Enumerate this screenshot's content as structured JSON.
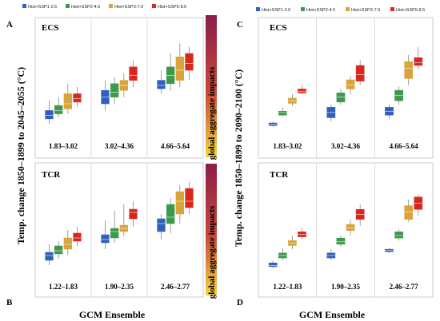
{
  "legend": {
    "items": [
      {
        "label": "Hist+SSP1-2.6",
        "color": "#2f5fbf"
      },
      {
        "label": "Hist+SSP2-4.5",
        "color": "#3c9a4a"
      },
      {
        "label": "Hist+SSP3-7.0",
        "color": "#d9a43a"
      },
      {
        "label": "Hist+SSP5-8.5",
        "color": "#d8281e"
      }
    ]
  },
  "left": {
    "ylabel": "Temp. change 1850–1899 to 2045–2055 (°C)",
    "xlabel": "GCM Ensemble",
    "impact_label": "global aggregate impacts"
  },
  "right": {
    "ylabel": "Temp. change 1850–1899 to 2090–2100 (°C)",
    "xlabel": "GCM Ensemble"
  },
  "chart_data": [
    {
      "type": "box",
      "panel_letter": "A",
      "title": "ECS",
      "groups": [
        "1.83–3.02",
        "3.02–4.36",
        "4.66–5.64"
      ],
      "series": [
        {
          "name": "Hist+SSP1-2.6",
          "boxes": [
            [
              1.2,
              1.35,
              1.45,
              1.6,
              1.9
            ],
            [
              1.6,
              1.8,
              2.0,
              2.2,
              2.5
            ],
            [
              2.1,
              2.25,
              2.35,
              2.5,
              2.8
            ]
          ]
        },
        {
          "name": "Hist+SSP2-4.5",
          "boxes": [
            [
              1.4,
              1.5,
              1.6,
              1.75,
              2.0
            ],
            [
              1.8,
              2.0,
              2.15,
              2.4,
              2.6
            ],
            [
              2.2,
              2.4,
              2.65,
              2.9,
              3.3
            ]
          ]
        },
        {
          "name": "Hist+SSP3-7.0",
          "boxes": [
            [
              1.5,
              1.65,
              1.8,
              2.1,
              2.4
            ],
            [
              2.0,
              2.2,
              2.35,
              2.5,
              2.7
            ],
            [
              2.3,
              2.5,
              2.8,
              3.2,
              3.6
            ]
          ]
        },
        {
          "name": "Hist+SSP5-8.5",
          "boxes": [
            [
              1.7,
              1.85,
              1.95,
              2.1,
              2.3
            ],
            [
              2.3,
              2.5,
              2.65,
              2.9,
              3.1
            ],
            [
              2.5,
              2.8,
              3.0,
              3.3,
              3.5
            ]
          ]
        }
      ],
      "ylim": [
        0.8,
        3.8
      ]
    },
    {
      "type": "box",
      "panel_letter": "B",
      "title": "TCR",
      "groups": [
        "1.22–1.83",
        "1.90–2.35",
        "2.46–2.77"
      ],
      "series": [
        {
          "name": "Hist+SSP1-2.6",
          "boxes": [
            [
              1.2,
              1.35,
              1.5,
              1.6,
              1.85
            ],
            [
              1.7,
              1.9,
              2.0,
              2.15,
              2.6
            ],
            [
              2.0,
              2.25,
              2.5,
              2.65,
              2.8
            ]
          ]
        },
        {
          "name": "Hist+SSP2-4.5",
          "boxes": [
            [
              1.4,
              1.55,
              1.65,
              1.8,
              1.95
            ],
            [
              1.9,
              2.05,
              2.25,
              2.35,
              2.9
            ],
            [
              2.2,
              2.5,
              2.7,
              3.1,
              3.3
            ]
          ]
        },
        {
          "name": "Hist+SSP3-7.0",
          "boxes": [
            [
              1.5,
              1.7,
              1.85,
              2.05,
              2.3
            ],
            [
              2.1,
              2.25,
              2.35,
              2.45,
              3.1
            ],
            [
              2.5,
              2.8,
              3.2,
              3.5,
              3.7
            ]
          ]
        },
        {
          "name": "Hist+SSP5-8.5",
          "boxes": [
            [
              1.8,
              1.95,
              2.05,
              2.2,
              2.4
            ],
            [
              2.4,
              2.65,
              2.85,
              2.95,
              3.2
            ],
            [
              2.8,
              3.0,
              3.2,
              3.6,
              3.8
            ]
          ]
        }
      ],
      "ylim": [
        0.8,
        3.8
      ]
    },
    {
      "type": "box",
      "panel_letter": "C",
      "title": "ECS",
      "groups": [
        "1.83–3.02",
        "3.02–4.36",
        "4.66–5.64"
      ],
      "series": [
        {
          "name": "Hist+SSP1-2.6",
          "boxes": [
            [
              1.3,
              1.4,
              1.5,
              1.6,
              1.7
            ],
            [
              1.7,
              2.0,
              2.4,
              2.8,
              3.0
            ],
            [
              1.9,
              2.2,
              2.5,
              2.8,
              3.0
            ]
          ]
        },
        {
          "name": "Hist+SSP2-4.5",
          "boxes": [
            [
              2.1,
              2.2,
              2.4,
              2.5,
              2.8
            ],
            [
              3.0,
              3.2,
              3.6,
              3.9,
              4.2
            ],
            [
              3.0,
              3.3,
              3.7,
              4.1,
              4.4
            ]
          ]
        },
        {
          "name": "Hist+SSP3-7.0",
          "boxes": [
            [
              2.9,
              3.1,
              3.3,
              3.5,
              3.8
            ],
            [
              3.8,
              4.2,
              4.5,
              4.9,
              5.2
            ],
            [
              4.5,
              5.0,
              5.8,
              6.3,
              6.8
            ]
          ]
        },
        {
          "name": "Hist+SSP5-8.5",
          "boxes": [
            [
              3.8,
              3.9,
              4.0,
              4.2,
              4.5
            ],
            [
              4.5,
              4.8,
              5.3,
              6.0,
              6.4
            ],
            [
              5.7,
              6.0,
              6.2,
              6.6,
              7.4
            ]
          ]
        }
      ],
      "ylim": [
        0.5,
        8.2
      ]
    },
    {
      "type": "box",
      "panel_letter": "D",
      "title": "TCR",
      "groups": [
        "1.22–1.83",
        "1.90–2.35",
        "2.46–2.77"
      ],
      "series": [
        {
          "name": "Hist+SSP1-2.6",
          "boxes": [
            [
              1.3,
              1.4,
              1.5,
              1.7,
              1.9
            ],
            [
              1.9,
              2.1,
              2.3,
              2.5,
              2.8
            ],
            [
              2.5,
              2.6,
              2.7,
              2.8,
              2.9
            ]
          ]
        },
        {
          "name": "Hist+SSP2-4.5",
          "boxes": [
            [
              1.9,
              2.1,
              2.3,
              2.5,
              2.9
            ],
            [
              3.0,
              3.2,
              3.4,
              3.7,
              3.9
            ],
            [
              3.5,
              3.7,
              3.9,
              4.2,
              4.4
            ]
          ]
        },
        {
          "name": "Hist+SSP3-7.0",
          "boxes": [
            [
              2.8,
              3.1,
              3.3,
              3.5,
              3.9
            ],
            [
              3.9,
              4.3,
              4.5,
              4.8,
              5.2
            ],
            [
              5.0,
              5.2,
              5.8,
              6.3,
              6.8
            ]
          ]
        },
        {
          "name": "Hist+SSP5-8.5",
          "boxes": [
            [
              3.6,
              3.8,
              4.0,
              4.2,
              4.5
            ],
            [
              4.7,
              5.2,
              5.6,
              6.0,
              6.4
            ],
            [
              5.5,
              6.0,
              6.5,
              7.0,
              7.2
            ]
          ]
        }
      ],
      "ylim": [
        0.5,
        8.2
      ]
    }
  ]
}
